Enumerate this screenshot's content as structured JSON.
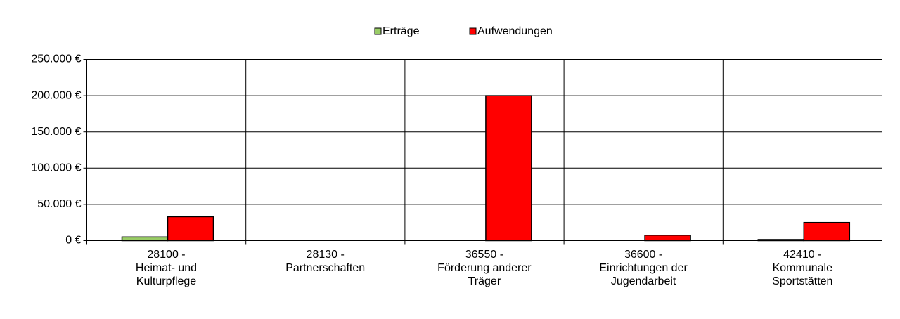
{
  "chart_data": {
    "type": "bar",
    "categories": [
      "28100 -\nHeimat- und\nKulturpflege",
      "28130 -\nPartnerschaften",
      "36550 -\nFörderung anderer\nTräger",
      "36600 -\nEinrichtungen der\nJugendarbeit",
      "42410 -\nKommunale\nSportstätten"
    ],
    "series": [
      {
        "name": "Erträge",
        "color": "#99cc66",
        "values": [
          5000,
          0,
          0,
          0,
          1500
        ]
      },
      {
        "name": "Aufwendungen",
        "color": "#ff0000",
        "values": [
          33000,
          0,
          200000,
          7500,
          25000
        ]
      }
    ],
    "ylim": [
      0,
      250000
    ],
    "yticks": [
      {
        "value": 0,
        "label": "0 €"
      },
      {
        "value": 50000,
        "label": "50.000 €"
      },
      {
        "value": 100000,
        "label": "100.000 €"
      },
      {
        "value": 150000,
        "label": "150.000 €"
      },
      {
        "value": 200000,
        "label": "200.000 €"
      },
      {
        "value": 250000,
        "label": "250.000 €"
      }
    ],
    "grid": true,
    "legend": "top"
  }
}
